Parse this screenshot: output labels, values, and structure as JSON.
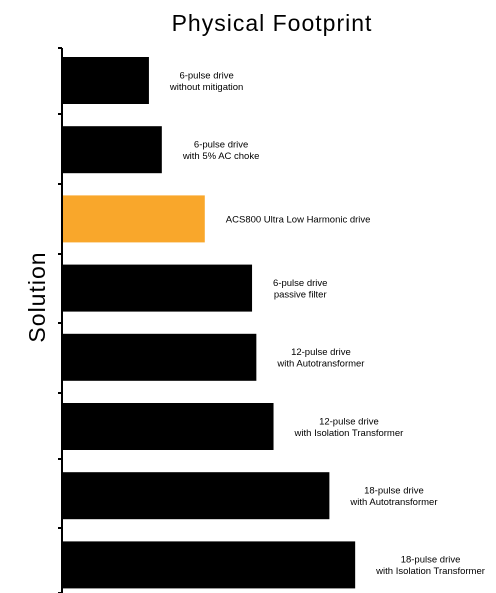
{
  "chart_data": {
    "type": "bar",
    "orientation": "horizontal",
    "title": "Physical Footprint",
    "ylabel": "Solution",
    "xlabel": "",
    "xlim": [
      0,
      100
    ],
    "categories": [
      [
        "6-pulse drive",
        "without mitigation"
      ],
      [
        "6-pulse drive",
        "with 5% AC choke"
      ],
      [
        "ACS800 Ultra Low Harmonic drive"
      ],
      [
        "6-pulse drive",
        "passive filter"
      ],
      [
        "12-pulse drive",
        "with Autotransformer"
      ],
      [
        "12-pulse drive",
        "with Isolation Transformer"
      ],
      [
        "18-pulse drive",
        "with Autotransformer"
      ],
      [
        "18-pulse drive",
        "with Isolation Transformer"
      ]
    ],
    "values": [
      20,
      23,
      33,
      44,
      45,
      49,
      62,
      68
    ],
    "colors": [
      "#000000",
      "#000000",
      "#F9A72B",
      "#000000",
      "#000000",
      "#000000",
      "#000000",
      "#000000"
    ],
    "grid": false,
    "legend": "none"
  }
}
